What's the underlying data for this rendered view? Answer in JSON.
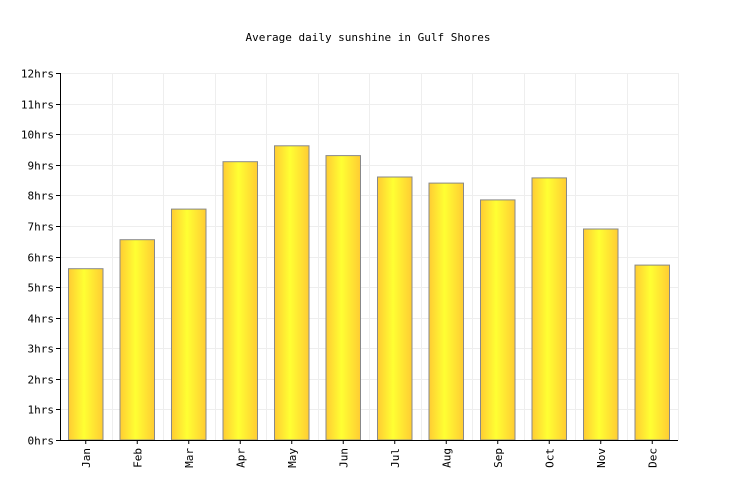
{
  "chart_data": {
    "type": "bar",
    "title": "Average daily sunshine in Gulf Shores",
    "xlabel": "",
    "ylabel": "",
    "categories": [
      "Jan",
      "Feb",
      "Mar",
      "Apr",
      "May",
      "Jun",
      "Jul",
      "Aug",
      "Sep",
      "Oct",
      "Nov",
      "Dec"
    ],
    "values": [
      5.6,
      6.55,
      7.55,
      9.1,
      9.62,
      9.3,
      8.6,
      8.4,
      7.85,
      8.57,
      6.9,
      5.72
    ],
    "ylim": [
      0,
      12
    ],
    "yticks": [
      "0hrs",
      "1hrs",
      "2hrs",
      "3hrs",
      "4hrs",
      "5hrs",
      "6hrs",
      "7hrs",
      "8hrs",
      "9hrs",
      "10hrs",
      "11hrs",
      "12hrs"
    ],
    "grid": true,
    "colors": {
      "bar_light": "#ffff33",
      "bar_dark": "#ffcc33",
      "bar_border": "#888888"
    }
  }
}
